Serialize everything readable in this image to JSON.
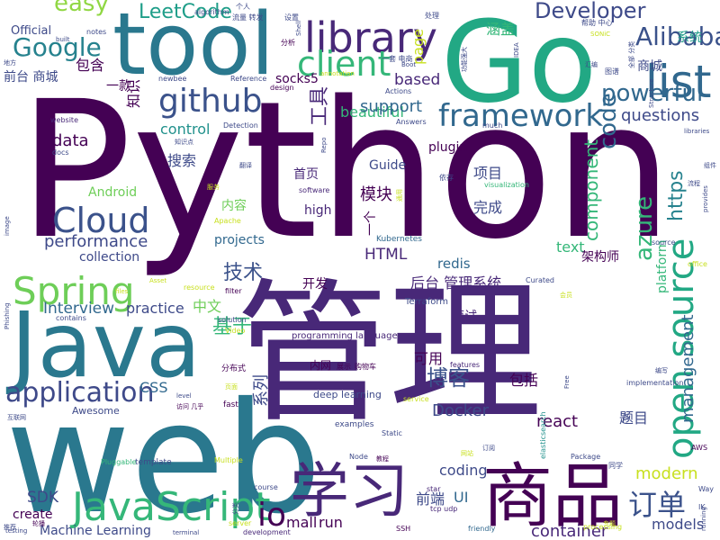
{
  "palette": {
    "dark_purple": "#440154",
    "indigo": "#3b528b",
    "blue": "#31688e",
    "teal": "#21918c",
    "cyan": "#1f9e89",
    "green": "#35b779",
    "lime": "#90d743",
    "yellow": "#c8e020"
  },
  "words": [
    {
      "text": "Python",
      "color": "#440154"
    },
    {
      "text": "管理",
      "color": "#482878"
    },
    {
      "text": "web",
      "color": "#2a788e"
    },
    {
      "text": "Go",
      "color": "#22a884"
    },
    {
      "text": "tool",
      "color": "#2a788e"
    },
    {
      "text": "Java",
      "color": "#2a788e"
    },
    {
      "text": "商品",
      "color": "#440154"
    },
    {
      "text": "学习",
      "color": "#482878"
    },
    {
      "text": "library",
      "color": "#482878"
    },
    {
      "text": "list",
      "color": "#31688e"
    },
    {
      "text": "Cloud",
      "color": "#3b528b"
    },
    {
      "text": "JavaScript",
      "color": "#35b779"
    },
    {
      "text": "Spring",
      "color": "#6ece58"
    },
    {
      "text": "framework",
      "color": "#31688e"
    },
    {
      "text": "github",
      "color": "#3b528b"
    },
    {
      "text": "client",
      "color": "#35b779"
    },
    {
      "text": "open source",
      "color": "#22a884"
    },
    {
      "text": "application",
      "color": "#3e4989"
    },
    {
      "text": "Google",
      "color": "#26828e"
    },
    {
      "text": "powerful",
      "color": "#31688e"
    },
    {
      "text": "Alibaba",
      "color": "#3b528b"
    },
    {
      "text": "Developer",
      "color": "#3e4a89"
    },
    {
      "text": "easy",
      "color": "#90d743"
    },
    {
      "text": "LeetCode",
      "color": "#1f9e89"
    },
    {
      "text": "beautiful",
      "color": "#35b779"
    },
    {
      "text": "performance",
      "color": "#3e4989"
    },
    {
      "text": "Interview",
      "color": "#31688e"
    },
    {
      "text": "博客",
      "color": "#3b528b"
    },
    {
      "text": "订单",
      "color": "#3b528b"
    },
    {
      "text": "技术",
      "color": "#3b528b"
    },
    {
      "text": "基于",
      "color": "#35b779"
    },
    {
      "text": "工具",
      "color": "#482878"
    },
    {
      "text": "questions",
      "color": "#3e4a89"
    },
    {
      "text": "code",
      "color": "#31688e"
    },
    {
      "text": "azure",
      "color": "#35b779"
    },
    {
      "text": "https",
      "color": "#26828e"
    },
    {
      "text": "component",
      "color": "#35b779"
    },
    {
      "text": "management",
      "color": "#31688e"
    },
    {
      "text": "data",
      "color": "#440154"
    },
    {
      "text": "control",
      "color": "#21918c"
    },
    {
      "text": "support",
      "color": "#31688e"
    },
    {
      "text": "based",
      "color": "#482878"
    },
    {
      "text": "io",
      "color": "#440154"
    },
    {
      "text": "Docker",
      "color": "#3e4a89"
    },
    {
      "text": "modern",
      "color": "#c8e020"
    },
    {
      "text": "HTML",
      "color": "#482878"
    },
    {
      "text": "CSS",
      "color": "#31688e"
    },
    {
      "text": "SDK",
      "color": "#3e4989"
    },
    {
      "text": "UI",
      "color": "#31688e"
    },
    {
      "text": "react",
      "color": "#440154"
    },
    {
      "text": "coding",
      "color": "#3e4a89"
    },
    {
      "text": "container",
      "color": "#482878"
    },
    {
      "text": "redis",
      "color": "#31688e"
    },
    {
      "text": "Android",
      "color": "#6ece58"
    },
    {
      "text": "projects",
      "color": "#31688e"
    },
    {
      "text": "collection",
      "color": "#3e4989"
    },
    {
      "text": "practice",
      "color": "#3e4a89"
    },
    {
      "text": "text",
      "color": "#35b779"
    },
    {
      "text": "platform",
      "color": "#35b779"
    },
    {
      "text": "models",
      "color": "#3e4a89"
    },
    {
      "text": "mall",
      "color": "#440154"
    },
    {
      "text": "run",
      "color": "#440154"
    },
    {
      "text": "项目",
      "color": "#3e4a89"
    },
    {
      "text": "完成",
      "color": "#3e4a89"
    },
    {
      "text": "模块",
      "color": "#440154"
    },
    {
      "text": "首页",
      "color": "#482878"
    },
    {
      "text": "搜索",
      "color": "#3e4a89"
    },
    {
      "text": "内容",
      "color": "#6ece58"
    },
    {
      "text": "一个",
      "color": "#440154"
    },
    {
      "text": "开发",
      "color": "#440154"
    },
    {
      "text": "后台 管理系统",
      "color": "#482878"
    },
    {
      "text": "面试",
      "color": "#482878"
    },
    {
      "text": "可用",
      "color": "#440154"
    },
    {
      "text": "系列",
      "color": "#3e4a89"
    },
    {
      "text": "包括",
      "color": "#440154"
    },
    {
      "text": "题目",
      "color": "#3e4a89"
    },
    {
      "text": "前端",
      "color": "#3e4a89"
    },
    {
      "text": "中文",
      "color": "#6ece58"
    },
    {
      "text": "涵盖",
      "color": "#35b779"
    },
    {
      "text": "包含",
      "color": "#440154"
    },
    {
      "text": "商城",
      "color": "#3e4a89"
    },
    {
      "text": "系统",
      "color": "#1f9e89"
    },
    {
      "text": "知识",
      "color": "#440154"
    },
    {
      "text": "架构师",
      "color": "#440154"
    },
    {
      "text": "前台 商城",
      "color": "#3e4a89"
    },
    {
      "text": "一款",
      "color": "#440154"
    },
    {
      "text": "socks5",
      "color": "#440154"
    },
    {
      "text": "plugin",
      "color": "#440154"
    },
    {
      "text": "Guide",
      "color": "#3e4a89"
    },
    {
      "text": "high",
      "color": "#482878"
    },
    {
      "text": "create",
      "color": "#440154"
    },
    {
      "text": "Official",
      "color": "#3e4a89"
    },
    {
      "text": "page",
      "color": "#c8e020"
    },
    {
      "text": "Machine Learning",
      "color": "#3e4a89"
    },
    {
      "text": "deep learning",
      "color": "#3e4a89"
    },
    {
      "text": "programming language",
      "color": "#482878"
    },
    {
      "text": "Awesome",
      "color": "#3e4a89"
    },
    {
      "text": "Terraform",
      "color": "#3e4a89"
    },
    {
      "text": "Kubernetes",
      "color": "#31688e"
    },
    {
      "text": "template",
      "color": "#3e4a89"
    },
    {
      "text": "examples",
      "color": "#3e4a89"
    },
    {
      "text": "features",
      "color": "#482878"
    },
    {
      "text": "implementation",
      "color": "#3e4a89"
    },
    {
      "text": "visualization",
      "color": "#35b779"
    },
    {
      "text": "software",
      "color": "#482878"
    },
    {
      "text": "Static",
      "color": "#3e4a89"
    },
    {
      "text": "elasticsearch",
      "color": "#21918c"
    },
    {
      "text": "Node",
      "color": "#3e4a89"
    },
    {
      "text": "star",
      "color": "#482878"
    },
    {
      "text": "SSH",
      "color": "#440154"
    },
    {
      "text": "tcp udp",
      "color": "#482878"
    },
    {
      "text": "friendly",
      "color": "#31688e"
    },
    {
      "text": "processing",
      "color": "#c8e020"
    },
    {
      "text": "development",
      "color": "#482878"
    },
    {
      "text": "server",
      "color": "#c8e020"
    },
    {
      "text": "terminal",
      "color": "#3e4a89"
    },
    {
      "text": "course",
      "color": "#3e4a89"
    },
    {
      "text": "Multiple",
      "color": "#c8e020"
    },
    {
      "text": "solution",
      "color": "#3e4a89"
    },
    {
      "text": "Video",
      "color": "#c8e020"
    },
    {
      "text": "filter",
      "color": "#440154"
    },
    {
      "text": "resource",
      "color": "#c8e020"
    },
    {
      "text": "Pluggable",
      "color": "#35b779"
    },
    {
      "text": "Apache",
      "color": "#c8e020"
    },
    {
      "text": "Package",
      "color": "#3e4a89"
    },
    {
      "text": "Curated",
      "color": "#3e4a89"
    },
    {
      "text": "office",
      "color": "#c8e020"
    },
    {
      "text": "source",
      "color": "#3e4a89"
    },
    {
      "text": "AWS",
      "color": "#440154"
    },
    {
      "text": "Way",
      "color": "#3e4a89"
    },
    {
      "text": "running",
      "color": "#3e4a89"
    },
    {
      "text": "provides",
      "color": "#3e4a89"
    },
    {
      "text": "libraries",
      "color": "#3e4a89"
    },
    {
      "text": "Structure",
      "color": "#3e4a89"
    },
    {
      "text": "Reference",
      "color": "#3e4a89"
    },
    {
      "text": "design",
      "color": "#440154"
    },
    {
      "text": "Actions",
      "color": "#3e4a89"
    },
    {
      "text": "Answers",
      "color": "#3e4a89"
    },
    {
      "text": "much",
      "color": "#3e4a89"
    },
    {
      "text": "Detection",
      "color": "#3e4a89"
    },
    {
      "text": "website",
      "color": "#482878"
    },
    {
      "text": "docs",
      "color": "#3e4a89"
    },
    {
      "text": "newbee",
      "color": "#3e4a89"
    },
    {
      "text": "algorithm",
      "color": "#3e4a89"
    },
    {
      "text": "notes",
      "color": "#3e4a89"
    },
    {
      "text": "built",
      "color": "#3e4a89"
    },
    {
      "text": "image",
      "color": "#3e4a89"
    },
    {
      "text": "Phishing",
      "color": "#3e4a89"
    },
    {
      "text": "contains",
      "color": "#3e4a89"
    },
    {
      "text": "level",
      "color": "#3e4a89"
    },
    {
      "text": "fast",
      "color": "#440154"
    },
    {
      "text": "service",
      "color": "#c8e020"
    },
    {
      "text": "Free",
      "color": "#3e4a89"
    },
    {
      "text": "IDEA",
      "color": "#3e4a89"
    },
    {
      "text": "SONiC",
      "color": "#c8e020"
    },
    {
      "text": "Shell",
      "color": "#3e4a89"
    },
    {
      "text": "Boot",
      "color": "#3e4a89"
    },
    {
      "text": "Repo",
      "color": "#3e4a89"
    },
    {
      "text": "annotation",
      "color": "#c8e020"
    },
    {
      "text": "Asset",
      "color": "#c8e020"
    },
    {
      "text": "files",
      "color": "#c8e020"
    },
    {
      "text": "IK",
      "color": "#3e4a89"
    },
    {
      "text": "JS",
      "color": "#3e4a89"
    },
    {
      "text": "内网",
      "color": "#440154"
    },
    {
      "text": "展示",
      "color": "#440154"
    },
    {
      "text": "购物车",
      "color": "#440154"
    },
    {
      "text": "分布式",
      "color": "#440154"
    },
    {
      "text": "个人",
      "color": "#3e4a89"
    },
    {
      "text": "流量 转发",
      "color": "#3e4a89"
    },
    {
      "text": "设置",
      "color": "#3e4a89"
    },
    {
      "text": "处理",
      "color": "#3e4a89"
    },
    {
      "text": "分析",
      "color": "#440154"
    },
    {
      "text": "帮助 中心",
      "color": "#3e4a89"
    },
    {
      "text": "一套 电商",
      "color": "#3e4a89"
    },
    {
      "text": "功能强大",
      "color": "#3e4a89"
    },
    {
      "text": "汇编",
      "color": "#3e4a89"
    },
    {
      "text": "图谱",
      "color": "#3e4a89"
    },
    {
      "text": "地方",
      "color": "#3e4a89"
    },
    {
      "text": "知识点",
      "color": "#3e4a89"
    },
    {
      "text": "翻译",
      "color": "#3e4a89"
    },
    {
      "text": "依存",
      "color": "#3e4a89"
    },
    {
      "text": "服务",
      "color": "#c8e020"
    },
    {
      "text": "编写",
      "color": "#3e4a89"
    },
    {
      "text": "组件",
      "color": "#3e4a89"
    },
    {
      "text": "流程",
      "color": "#3e4a89"
    },
    {
      "text": "会员",
      "color": "#c8e020"
    },
    {
      "text": "访问 几乎",
      "color": "#440154"
    },
    {
      "text": "页面",
      "color": "#c8e020"
    },
    {
      "text": "同学",
      "color": "#3e4a89"
    },
    {
      "text": "专题",
      "color": "#c8e020"
    },
    {
      "text": "订阅",
      "color": "#3e4a89"
    },
    {
      "text": "网站",
      "color": "#c8e020"
    },
    {
      "text": "教程",
      "color": "#440154"
    },
    {
      "text": "互联网",
      "color": "#3e4a89"
    },
    {
      "text": "推荐",
      "color": "#3e4a89"
    },
    {
      "text": "testing",
      "color": "#3e4a89"
    },
    {
      "text": "轮播",
      "color": "#440154"
    },
    {
      "text": "分类",
      "color": "#3e4a89"
    },
    {
      "text": "全部 分类",
      "color": "#3e4a89"
    },
    {
      "text": "通用",
      "color": "#c8e020"
    }
  ]
}
